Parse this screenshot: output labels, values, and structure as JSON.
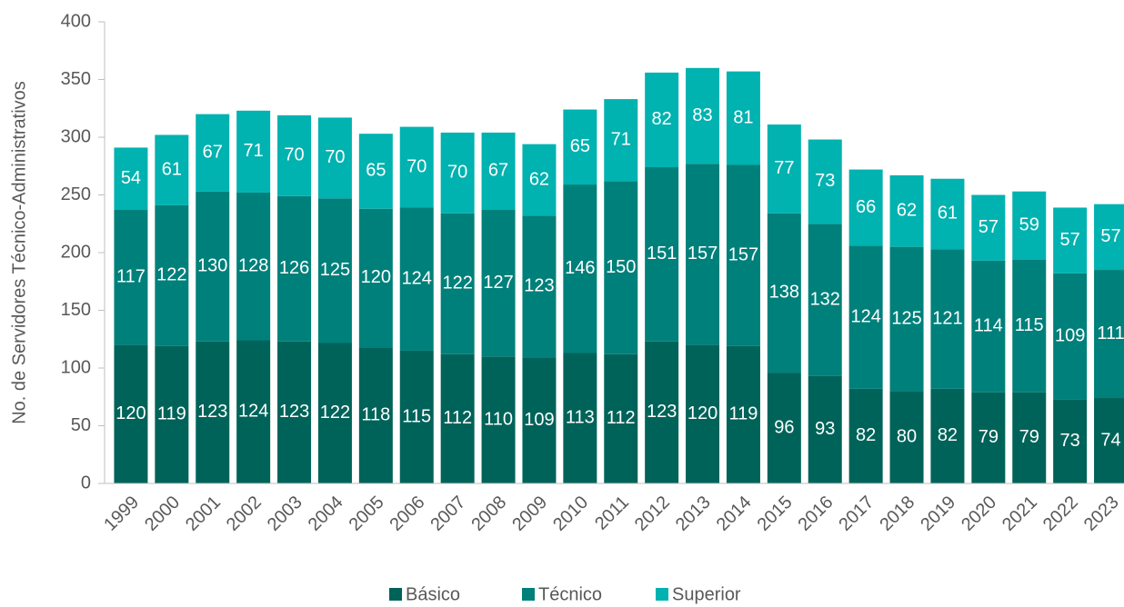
{
  "chart_data": {
    "type": "stacked_bar",
    "y_label": "No. de Servidores Técnico-Administrativos",
    "categories": [
      "1999",
      "2000",
      "2001",
      "2002",
      "2003",
      "2004",
      "2005",
      "2006",
      "2007",
      "2008",
      "2009",
      "2010",
      "2011",
      "2012",
      "2013",
      "2014",
      "2015",
      "2016",
      "2017",
      "2018",
      "2019",
      "2020",
      "2021",
      "2022",
      "2023"
    ],
    "series": [
      {
        "name": "Básico",
        "color": "#006359",
        "values": [
          120,
          119,
          123,
          124,
          123,
          122,
          118,
          115,
          112,
          110,
          109,
          113,
          112,
          123,
          120,
          119,
          96,
          93,
          82,
          80,
          82,
          79,
          79,
          73,
          74
        ]
      },
      {
        "name": "Técnico",
        "color": "#00807a",
        "values": [
          117,
          122,
          130,
          128,
          126,
          125,
          120,
          124,
          122,
          127,
          123,
          146,
          150,
          151,
          157,
          157,
          138,
          132,
          124,
          125,
          121,
          114,
          115,
          109,
          111
        ]
      },
      {
        "name": "Superior",
        "color": "#00b2b0",
        "values": [
          54,
          61,
          67,
          71,
          70,
          70,
          65,
          70,
          70,
          67,
          62,
          65,
          71,
          82,
          83,
          81,
          77,
          73,
          66,
          62,
          61,
          57,
          59,
          57,
          57
        ]
      }
    ],
    "ylim": [
      0,
      400
    ],
    "yticks": [
      0,
      50,
      100,
      150,
      200,
      250,
      300,
      350,
      400
    ],
    "legend": "bottom"
  }
}
